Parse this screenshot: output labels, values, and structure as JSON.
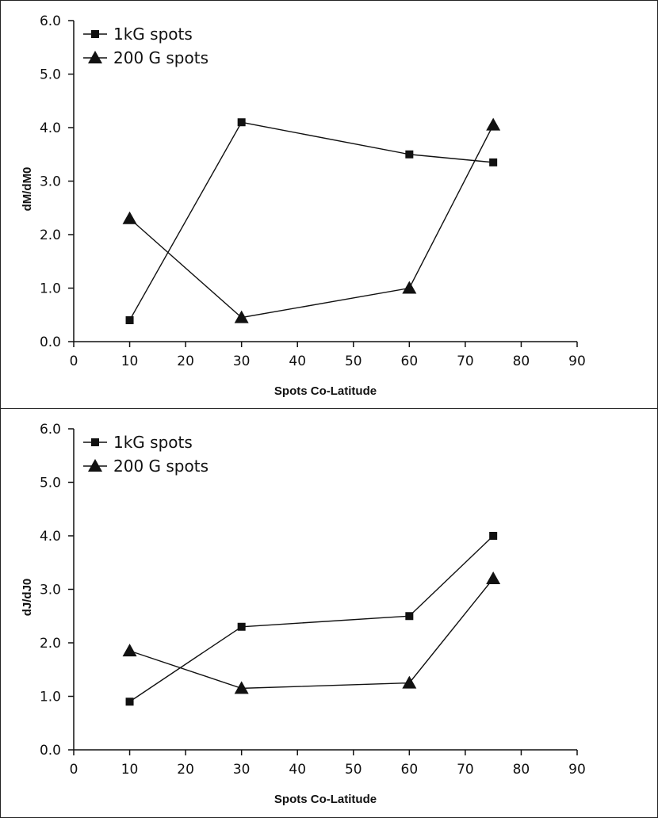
{
  "chart_data": [
    {
      "type": "line",
      "title": "",
      "xlabel": "Spots Co-Latitude",
      "ylabel": "dM/dM0",
      "xlim": [
        0,
        90
      ],
      "ylim": [
        0,
        6
      ],
      "xticks": [
        "0",
        "10",
        "20",
        "30",
        "40",
        "50",
        "60",
        "70",
        "80",
        "90"
      ],
      "yticks": [
        "0.0",
        "1.0",
        "2.0",
        "3.0",
        "4.0",
        "5.0",
        "6.0"
      ],
      "legend_position": "top-left",
      "series": [
        {
          "name": "1kG spots",
          "marker": "square",
          "x": [
            10,
            30,
            60,
            75
          ],
          "y": [
            0.4,
            4.1,
            3.5,
            3.35
          ]
        },
        {
          "name": "200 G spots",
          "marker": "triangle",
          "x": [
            10,
            30,
            60,
            75
          ],
          "y": [
            2.3,
            0.45,
            1.0,
            4.05
          ]
        }
      ]
    },
    {
      "type": "line",
      "title": "",
      "xlabel": "Spots Co-Latitude",
      "ylabel": "dJ/dJ0",
      "xlim": [
        0,
        90
      ],
      "ylim": [
        0,
        6
      ],
      "xticks": [
        "0",
        "10",
        "20",
        "30",
        "40",
        "50",
        "60",
        "70",
        "80",
        "90"
      ],
      "yticks": [
        "0.0",
        "1.0",
        "2.0",
        "3.0",
        "4.0",
        "5.0",
        "6.0"
      ],
      "legend_position": "top-left",
      "series": [
        {
          "name": "1kG spots",
          "marker": "square",
          "x": [
            10,
            30,
            60,
            75
          ],
          "y": [
            0.9,
            2.3,
            2.5,
            4.0
          ]
        },
        {
          "name": "200 G spots",
          "marker": "triangle",
          "x": [
            10,
            30,
            60,
            75
          ],
          "y": [
            1.85,
            1.15,
            1.25,
            3.2
          ]
        }
      ]
    }
  ]
}
